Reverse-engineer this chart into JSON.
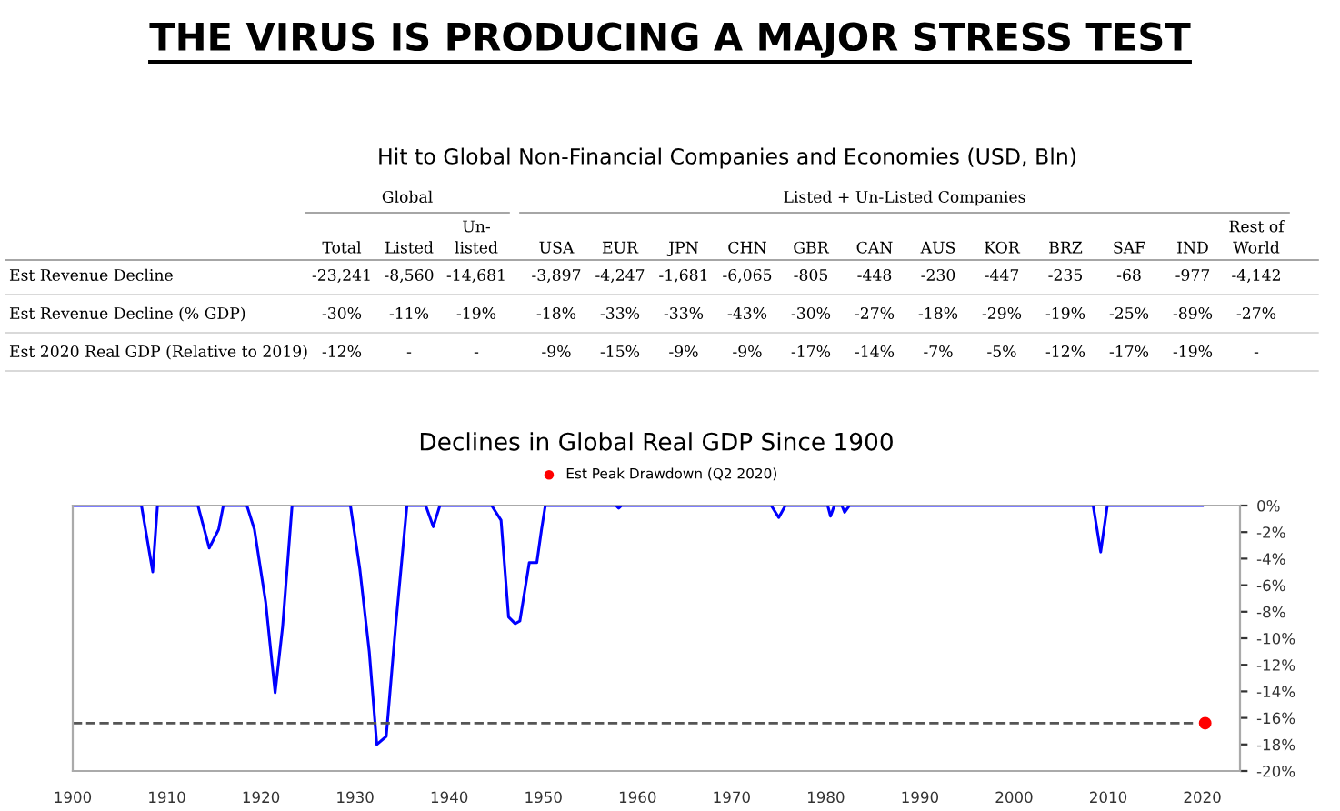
{
  "chart_data": [
    {
      "type": "other",
      "title": "THE VIRUS IS PRODUCING A MAJOR STRESS TEST",
      "subtitle": "Hit to Global Non-Financial Companies and Economies (USD, Bln)",
      "annotations": [
        "Global",
        "Listed + Un-Listed Companies"
      ],
      "categories": [
        "Total",
        "Listed",
        "Un-\nlisted",
        "USA",
        "EUR",
        "JPN",
        "CHN",
        "GBR",
        "CAN",
        "AUS",
        "KOR",
        "BRZ",
        "SAF",
        "IND",
        "Rest of\nWorld"
      ],
      "y_categories": [
        "Est Revenue Decline",
        "Est Revenue Decline (% GDP)",
        "Est 2020 Real GDP (Relative to 2019)"
      ],
      "cell_labels": [
        [
          "-23,241",
          "-8,560",
          "-14,681",
          "-3,897",
          "-4,247",
          "-1,681",
          "-6,065",
          "-805",
          "-448",
          "-230",
          "-447",
          "-235",
          "-68",
          "-977",
          "-4,142"
        ],
        [
          "-30%",
          "-11%",
          "-19%",
          "-18%",
          "-33%",
          "-33%",
          "-43%",
          "-30%",
          "-27%",
          "-18%",
          "-29%",
          "-19%",
          "-25%",
          "-89%",
          "-27%"
        ],
        [
          "-12%",
          "-",
          "-",
          "-9%",
          "-15%",
          "-9%",
          "-9%",
          "-17%",
          "-14%",
          "-7%",
          "-5%",
          "-12%",
          "-17%",
          "-19%",
          "-"
        ]
      ]
    },
    {
      "type": "line",
      "title": "Declines in Global Real GDP Since 1900",
      "series": [
        {
          "type": "line",
          "color": "#0000ff",
          "x": [
            1900,
            1907.3,
            1908.5,
            1909,
            1913.3,
            1914.5,
            1915.5,
            1916,
            1918.5,
            1919.3,
            1920.5,
            1921.5,
            1922.3,
            1923.3,
            1929.5,
            1930.5,
            1931.5,
            1932.3,
            1933.3,
            1934.3,
            1935.5,
            1937.5,
            1938.3,
            1939,
            1944.5,
            1945.5,
            1946.3,
            1947,
            1947.5,
            1948.5,
            1949.3,
            1949.8,
            1950.2,
            1957.7,
            1958,
            1958.3,
            1974.2,
            1975,
            1975.7,
            1980.2,
            1980.5,
            1980.9,
            1981.7,
            1982,
            1982.5,
            2008.4,
            2009.2,
            2009.9,
            2020
          ],
          "values": [
            0,
            0,
            -5.0,
            0,
            0,
            -3.2,
            -1.8,
            0,
            0,
            -1.8,
            -7.3,
            -14.1,
            -9.1,
            0,
            0,
            -4.8,
            -11,
            -18,
            -17.4,
            -9.1,
            0,
            0,
            -1.6,
            0,
            0,
            -1.1,
            -8.4,
            -8.9,
            -8.7,
            -4.3,
            -4.3,
            -1.8,
            0,
            0,
            -0.2,
            0,
            0,
            -0.9,
            0,
            0,
            -0.8,
            0,
            0,
            -0.5,
            0,
            0,
            -3.5,
            0,
            0
          ]
        },
        {
          "type": "scatter",
          "name": "Est Peak Drawdown (Q2 2020)",
          "color": "#ff0000",
          "marker": "circle",
          "x": [
            2020.3
          ],
          "values": [
            -16.4
          ]
        }
      ],
      "xlim": [
        1900,
        2024
      ],
      "ylim": [
        -20,
        0
      ],
      "xticks": [
        1900,
        1910,
        1920,
        1930,
        1940,
        1950,
        1960,
        1970,
        1980,
        1990,
        2000,
        2010,
        2020
      ],
      "yticks": [
        {
          "value": 0,
          "label": "0%"
        },
        {
          "value": -2,
          "label": "-2%"
        },
        {
          "value": -4,
          "label": "-4%"
        },
        {
          "value": -6,
          "label": "-6%"
        },
        {
          "value": -8,
          "label": "-8%"
        },
        {
          "value": -10,
          "label": "-10%"
        },
        {
          "value": -12,
          "label": "-12%"
        },
        {
          "value": -14,
          "label": "-14%"
        },
        {
          "value": -16,
          "label": "-16%"
        },
        {
          "value": -18,
          "label": "-18%"
        },
        {
          "value": -20,
          "label": "-20%"
        }
      ],
      "ref_lines": [
        {
          "axis": "y",
          "value": -16.4,
          "color": "#555555",
          "line_style": "dashed"
        }
      ],
      "legend": "top",
      "grid": false
    }
  ]
}
